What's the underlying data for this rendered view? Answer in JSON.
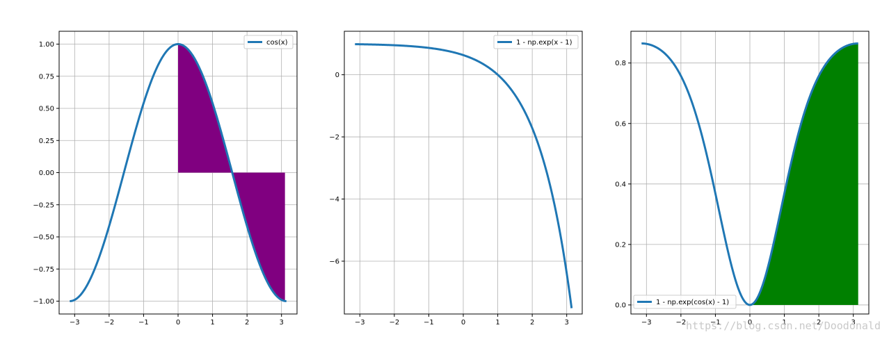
{
  "watermark": "https://blog.csdn.net/Doodonald",
  "colors": {
    "line": "#1f77b4",
    "fill_left": "#800080",
    "fill_right": "#008000"
  },
  "chart_data": [
    {
      "type": "line",
      "title": "",
      "xlabel": "",
      "ylabel": "",
      "function": "cos(x)",
      "x_range": [
        -3.14159,
        3.14159
      ],
      "xlim": [
        -3.45,
        3.45
      ],
      "ylim": [
        -1.1,
        1.1
      ],
      "xticks": [
        -3,
        -2,
        -1,
        0,
        1,
        2,
        3
      ],
      "yticks": [
        -1.0,
        -0.75,
        -0.5,
        -0.25,
        0.0,
        0.25,
        0.5,
        0.75,
        1.0
      ],
      "ytick_labels": [
        "−1.00",
        "−0.75",
        "−0.50",
        "−0.25",
        "0.00",
        "0.25",
        "0.50",
        "0.75",
        "1.00"
      ],
      "series": [
        {
          "name": "cos(x)",
          "color": "#1f77b4"
        }
      ],
      "fill": {
        "from": 0,
        "to": 3.1,
        "color": "#800080",
        "baseline": 0
      },
      "legend": "upper right",
      "grid": true
    },
    {
      "type": "line",
      "title": "",
      "xlabel": "",
      "ylabel": "",
      "function": "1 - exp(x - 1)",
      "x_range": [
        -3.14159,
        3.14159
      ],
      "xlim": [
        -3.45,
        3.45
      ],
      "ylim": [
        -7.7,
        1.4
      ],
      "xticks": [
        -3,
        -2,
        -1,
        0,
        1,
        2,
        3
      ],
      "yticks": [
        -6,
        -4,
        -2,
        0
      ],
      "ytick_labels": [
        "−6",
        "−4",
        "−2",
        "0"
      ],
      "series": [
        {
          "name": "1 - np.exp(x - 1)",
          "color": "#1f77b4"
        }
      ],
      "legend": "upper right",
      "grid": true
    },
    {
      "type": "line",
      "title": "",
      "xlabel": "",
      "ylabel": "",
      "function": "1 - exp(cos(x) - 1)",
      "x_range": [
        -3.14159,
        3.14159
      ],
      "xlim": [
        -3.45,
        3.45
      ],
      "ylim": [
        -0.03,
        0.905
      ],
      "xticks": [
        -3,
        -2,
        -1,
        0,
        1,
        2,
        3
      ],
      "yticks": [
        0.0,
        0.2,
        0.4,
        0.6,
        0.8
      ],
      "ytick_labels": [
        "0.0",
        "0.2",
        "0.4",
        "0.6",
        "0.8"
      ],
      "series": [
        {
          "name": "1 - np.exp(cos(x) - 1)",
          "color": "#1f77b4"
        }
      ],
      "fill": {
        "from": 0,
        "to": 3.14159,
        "color": "#008000",
        "baseline": 0
      },
      "legend": "lower left",
      "grid": true
    }
  ]
}
